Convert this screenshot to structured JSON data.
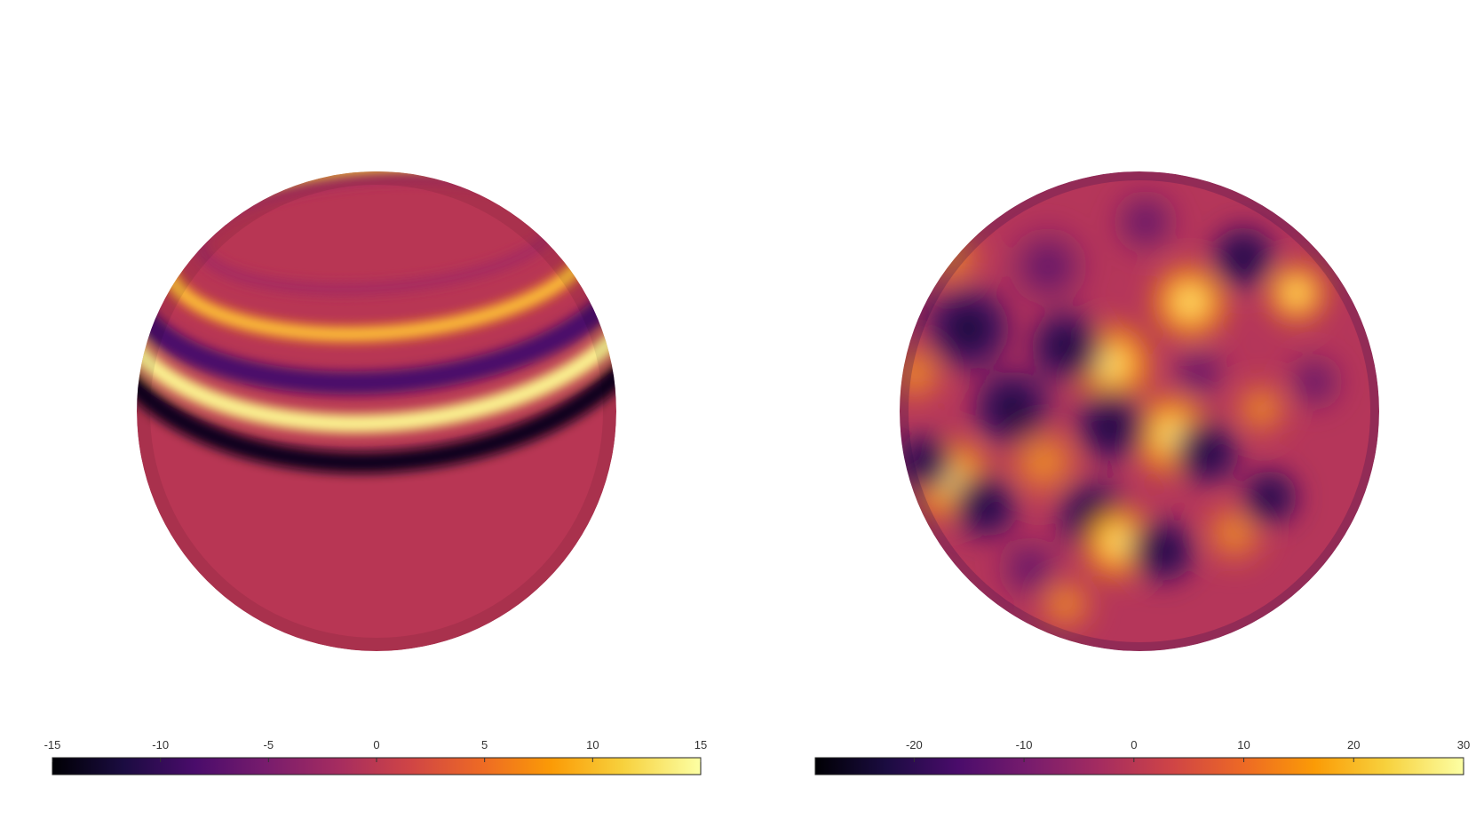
{
  "chart_data": [
    {
      "type": "colorbar",
      "xlim": [
        -15,
        15
      ],
      "xticks": [
        -15,
        -10,
        -5,
        0,
        5,
        10,
        15
      ]
    },
    {
      "type": "colorbar",
      "xlim": [
        -29,
        30
      ],
      "xticks": [
        -20,
        -10,
        0,
        10,
        20,
        30
      ]
    }
  ]
}
